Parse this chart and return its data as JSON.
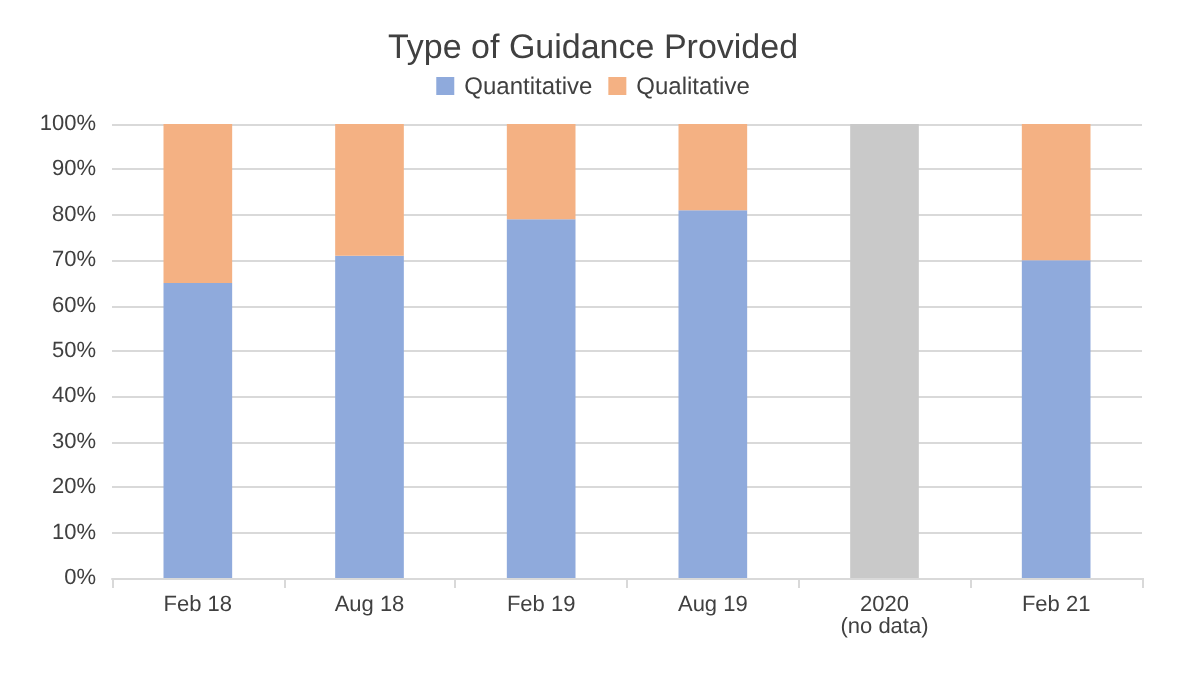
{
  "chart_data": {
    "type": "bar",
    "title": "Type of Guidance Provided",
    "stacked": true,
    "categories": [
      "Feb 18",
      "Aug 18",
      "Feb 19",
      "Aug 19",
      "2020\n(no data)",
      "Feb 21"
    ],
    "series": [
      {
        "name": "Quantitative",
        "color": "#8faadc",
        "values": [
          65,
          71,
          79,
          81,
          null,
          70
        ]
      },
      {
        "name": "Qualitative",
        "color": "#f4b183",
        "values": [
          35,
          29,
          21,
          19,
          null,
          30
        ]
      },
      {
        "color": "#c9c9c9",
        "values": [
          null,
          null,
          null,
          null,
          100,
          null
        ]
      }
    ],
    "ylim": [
      0,
      100
    ],
    "yticks": [
      {
        "value": 0,
        "label": "0%"
      },
      {
        "value": 10,
        "label": "10%"
      },
      {
        "value": 20,
        "label": "20%"
      },
      {
        "value": 30,
        "label": "30%"
      },
      {
        "value": 40,
        "label": "40%"
      },
      {
        "value": 50,
        "label": "50%"
      },
      {
        "value": 60,
        "label": "60%"
      },
      {
        "value": 70,
        "label": "70%"
      },
      {
        "value": 80,
        "label": "80%"
      },
      {
        "value": 90,
        "label": "90%"
      },
      {
        "value": 100,
        "label": "100%"
      }
    ],
    "grid": "y",
    "legend": "top"
  }
}
